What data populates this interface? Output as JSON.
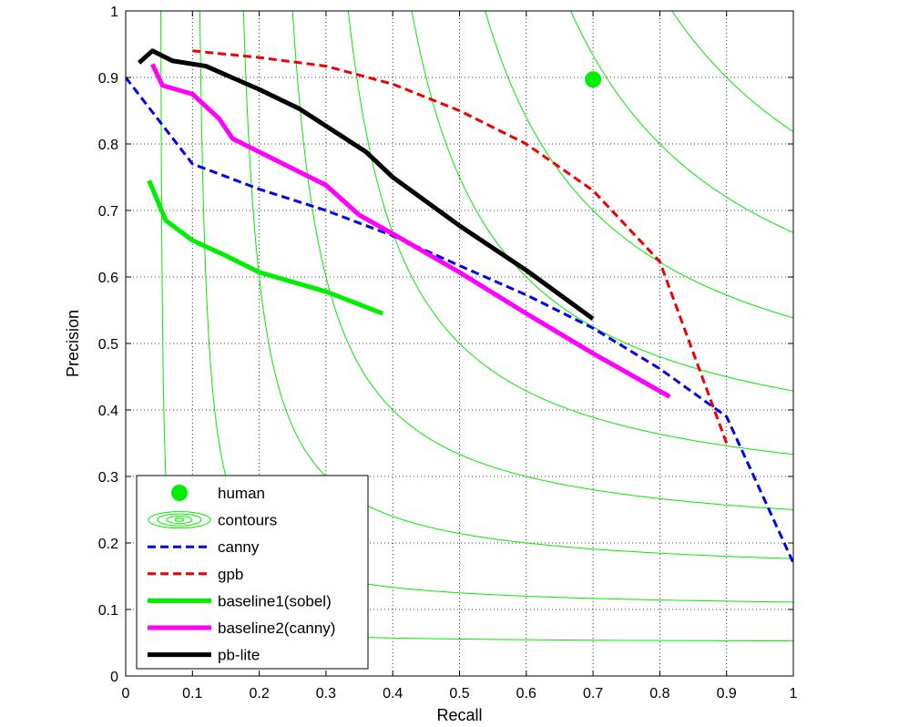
{
  "chart_data": {
    "type": "line",
    "xlabel": "Recall",
    "ylabel": "Precision",
    "xlim": [
      0,
      1
    ],
    "ylim": [
      0,
      1
    ],
    "x_ticks": [
      "0",
      "0.1",
      "0.2",
      "0.3",
      "0.4",
      "0.5",
      "0.6",
      "0.7",
      "0.8",
      "0.9",
      "1"
    ],
    "y_ticks": [
      "0",
      "0.1",
      "0.2",
      "0.3",
      "0.4",
      "0.5",
      "0.6",
      "0.7",
      "0.8",
      "0.9",
      "1"
    ],
    "grid": true,
    "legend_position": "bottom-left",
    "contour_f_levels": [
      0.1,
      0.2,
      0.3,
      0.4,
      0.5,
      0.6,
      0.7,
      0.8,
      0.9
    ],
    "series": [
      {
        "name": "human",
        "kind": "point",
        "color": "#00ee00",
        "points": [
          [
            0.7,
            0.897
          ]
        ]
      },
      {
        "name": "contours",
        "kind": "contour",
        "color": "#00ee00",
        "points": []
      },
      {
        "name": "canny",
        "kind": "line",
        "style": "dashed",
        "color": "#0000ee",
        "points": [
          [
            0.0,
            0.9
          ],
          [
            0.1,
            0.77
          ],
          [
            0.2,
            0.732
          ],
          [
            0.3,
            0.7
          ],
          [
            0.4,
            0.662
          ],
          [
            0.5,
            0.617
          ],
          [
            0.6,
            0.573
          ],
          [
            0.7,
            0.523
          ],
          [
            0.8,
            0.462
          ],
          [
            0.9,
            0.39
          ],
          [
            1.0,
            0.17
          ]
        ]
      },
      {
        "name": "gpb",
        "kind": "line",
        "style": "dashed",
        "color": "#ee0000",
        "points": [
          [
            0.1,
            0.94
          ],
          [
            0.2,
            0.93
          ],
          [
            0.3,
            0.917
          ],
          [
            0.4,
            0.89
          ],
          [
            0.5,
            0.85
          ],
          [
            0.6,
            0.8
          ],
          [
            0.7,
            0.73
          ],
          [
            0.8,
            0.623
          ],
          [
            0.9,
            0.35
          ]
        ]
      },
      {
        "name": "baseline1(sobel)",
        "kind": "line",
        "style": "solid",
        "color": "#00ee00",
        "points": [
          [
            0.035,
            0.745
          ],
          [
            0.06,
            0.685
          ],
          [
            0.1,
            0.655
          ],
          [
            0.15,
            0.632
          ],
          [
            0.2,
            0.607
          ],
          [
            0.3,
            0.578
          ],
          [
            0.385,
            0.545
          ]
        ]
      },
      {
        "name": "baseline2(canny)",
        "kind": "line",
        "style": "solid",
        "color": "#ff00ff",
        "points": [
          [
            0.04,
            0.92
          ],
          [
            0.055,
            0.888
          ],
          [
            0.1,
            0.875
          ],
          [
            0.14,
            0.838
          ],
          [
            0.16,
            0.808
          ],
          [
            0.3,
            0.738
          ],
          [
            0.35,
            0.693
          ],
          [
            0.4,
            0.665
          ],
          [
            0.5,
            0.607
          ],
          [
            0.6,
            0.545
          ],
          [
            0.7,
            0.485
          ],
          [
            0.815,
            0.42
          ]
        ]
      },
      {
        "name": "pb-lite",
        "kind": "line",
        "style": "solid",
        "color": "#000000",
        "points": [
          [
            0.02,
            0.922
          ],
          [
            0.04,
            0.94
          ],
          [
            0.07,
            0.925
          ],
          [
            0.12,
            0.917
          ],
          [
            0.2,
            0.882
          ],
          [
            0.26,
            0.853
          ],
          [
            0.3,
            0.827
          ],
          [
            0.36,
            0.788
          ],
          [
            0.4,
            0.75
          ],
          [
            0.5,
            0.677
          ],
          [
            0.6,
            0.61
          ],
          [
            0.7,
            0.537
          ]
        ]
      }
    ]
  }
}
